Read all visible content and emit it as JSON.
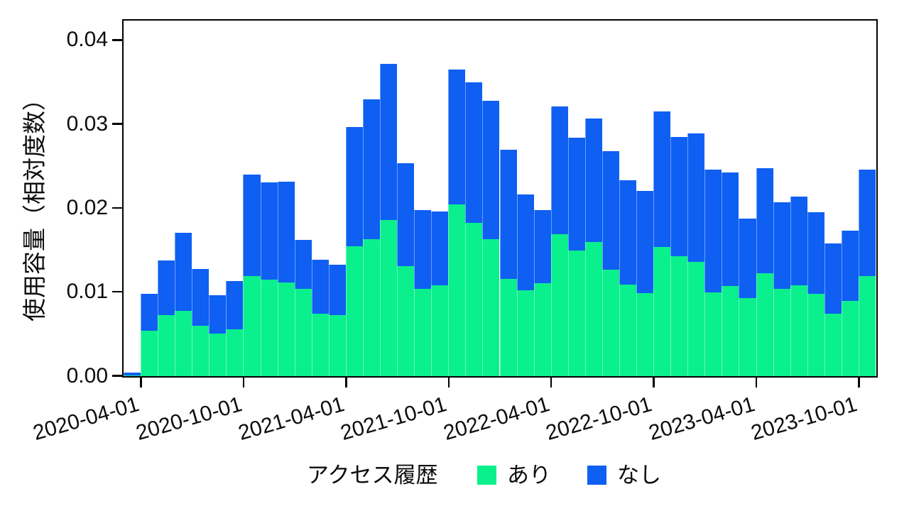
{
  "chart_data": {
    "type": "bar",
    "subtype": "stacked-histogram",
    "title": "",
    "xlabel": "",
    "ylabel": "使用容量（相対度数）",
    "ylim": [
      0,
      0.0422
    ],
    "grid": false,
    "legend": {
      "position": "bottom",
      "title": "アクセス履歴",
      "items": [
        {
          "label": "あり",
          "color": "#0af08c"
        },
        {
          "label": "なし",
          "color": "#0e5ff2"
        }
      ]
    },
    "y_ticks": [
      {
        "label": "0.00",
        "value": 0.0
      },
      {
        "label": "0.01",
        "value": 0.01
      },
      {
        "label": "0.02",
        "value": 0.02
      },
      {
        "label": "0.03",
        "value": 0.03
      },
      {
        "label": "0.04",
        "value": 0.04
      }
    ],
    "x_ticks": [
      {
        "label": "2020-04-01",
        "month_index": 1
      },
      {
        "label": "2020-10-01",
        "month_index": 7
      },
      {
        "label": "2021-04-01",
        "month_index": 13
      },
      {
        "label": "2021-10-01",
        "month_index": 19
      },
      {
        "label": "2022-04-01",
        "month_index": 25
      },
      {
        "label": "2022-10-01",
        "month_index": 31
      },
      {
        "label": "2023-04-01",
        "month_index": 37
      },
      {
        "label": "2023-10-01",
        "month_index": 43
      }
    ],
    "categories": [
      "2020-03",
      "2020-04",
      "2020-05",
      "2020-06",
      "2020-07",
      "2020-08",
      "2020-09",
      "2020-10",
      "2020-11",
      "2020-12",
      "2021-01",
      "2021-02",
      "2021-03",
      "2021-04",
      "2021-05",
      "2021-06",
      "2021-07",
      "2021-08",
      "2021-09",
      "2021-10",
      "2021-11",
      "2021-12",
      "2022-01",
      "2022-02",
      "2022-03",
      "2022-04",
      "2022-05",
      "2022-06",
      "2022-07",
      "2022-08",
      "2022-09",
      "2022-10",
      "2022-11",
      "2022-12",
      "2023-01",
      "2023-02",
      "2023-03",
      "2023-04",
      "2023-05",
      "2023-06",
      "2023-07",
      "2023-08",
      "2023-09",
      "2023-10"
    ],
    "series": [
      {
        "name": "あり",
        "color": "#0af08c",
        "values": [
          0.0001,
          0.0054,
          0.0073,
          0.0078,
          0.006,
          0.0051,
          0.0056,
          0.0119,
          0.0115,
          0.0112,
          0.0104,
          0.0074,
          0.0073,
          0.0155,
          0.0163,
          0.0186,
          0.0131,
          0.0104,
          0.0108,
          0.0205,
          0.0183,
          0.0163,
          0.0116,
          0.0102,
          0.0111,
          0.0169,
          0.015,
          0.016,
          0.0127,
          0.0109,
          0.0099,
          0.0154,
          0.0143,
          0.0136,
          0.01,
          0.0107,
          0.0093,
          0.0123,
          0.0104,
          0.0108,
          0.0098,
          0.0074,
          0.009,
          0.0119
        ]
      },
      {
        "name": "なし",
        "color": "#0e5ff2",
        "values": [
          0.0003,
          0.0044,
          0.0065,
          0.0093,
          0.0068,
          0.0045,
          0.0057,
          0.0121,
          0.0116,
          0.012,
          0.0058,
          0.0065,
          0.006,
          0.0142,
          0.0167,
          0.0186,
          0.0123,
          0.0094,
          0.0088,
          0.016,
          0.0167,
          0.0165,
          0.0154,
          0.0114,
          0.0087,
          0.0152,
          0.0134,
          0.0147,
          0.0141,
          0.0124,
          0.0122,
          0.0161,
          0.0142,
          0.0153,
          0.0146,
          0.0136,
          0.0095,
          0.0125,
          0.0103,
          0.0106,
          0.0097,
          0.0084,
          0.0083,
          0.0127
        ]
      }
    ]
  }
}
